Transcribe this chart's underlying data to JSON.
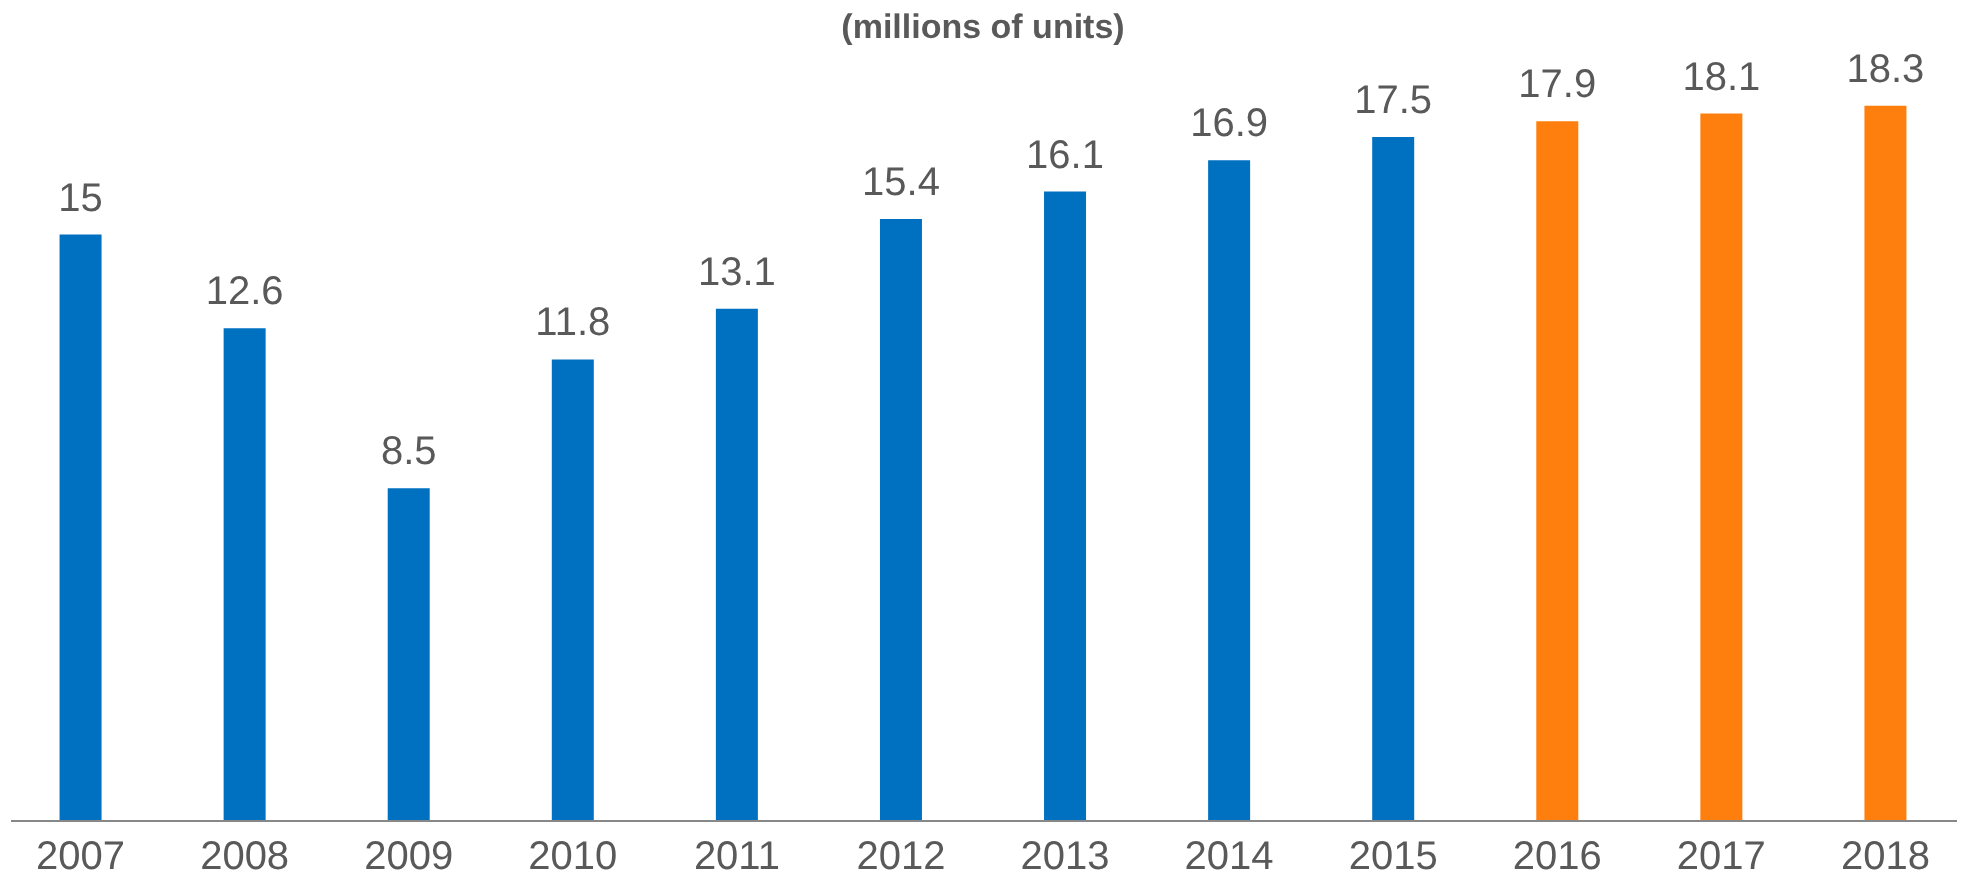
{
  "chart_data": {
    "type": "bar",
    "title": "(millions of units)",
    "categories": [
      "2007",
      "2008",
      "2009",
      "2010",
      "2011",
      "2012",
      "2013",
      "2014",
      "2015",
      "2016",
      "2017",
      "2018"
    ],
    "values": [
      15,
      12.6,
      8.5,
      11.8,
      13.1,
      15.4,
      16.1,
      16.9,
      17.5,
      17.9,
      18.1,
      18.3
    ],
    "colors": [
      "#0070c0",
      "#0070c0",
      "#0070c0",
      "#0070c0",
      "#0070c0",
      "#0070c0",
      "#0070c0",
      "#0070c0",
      "#0070c0",
      "#ff7f0e",
      "#ff7f0e",
      "#ff7f0e"
    ],
    "data_labels": true,
    "grid": false,
    "tick_labels": "x"
  }
}
